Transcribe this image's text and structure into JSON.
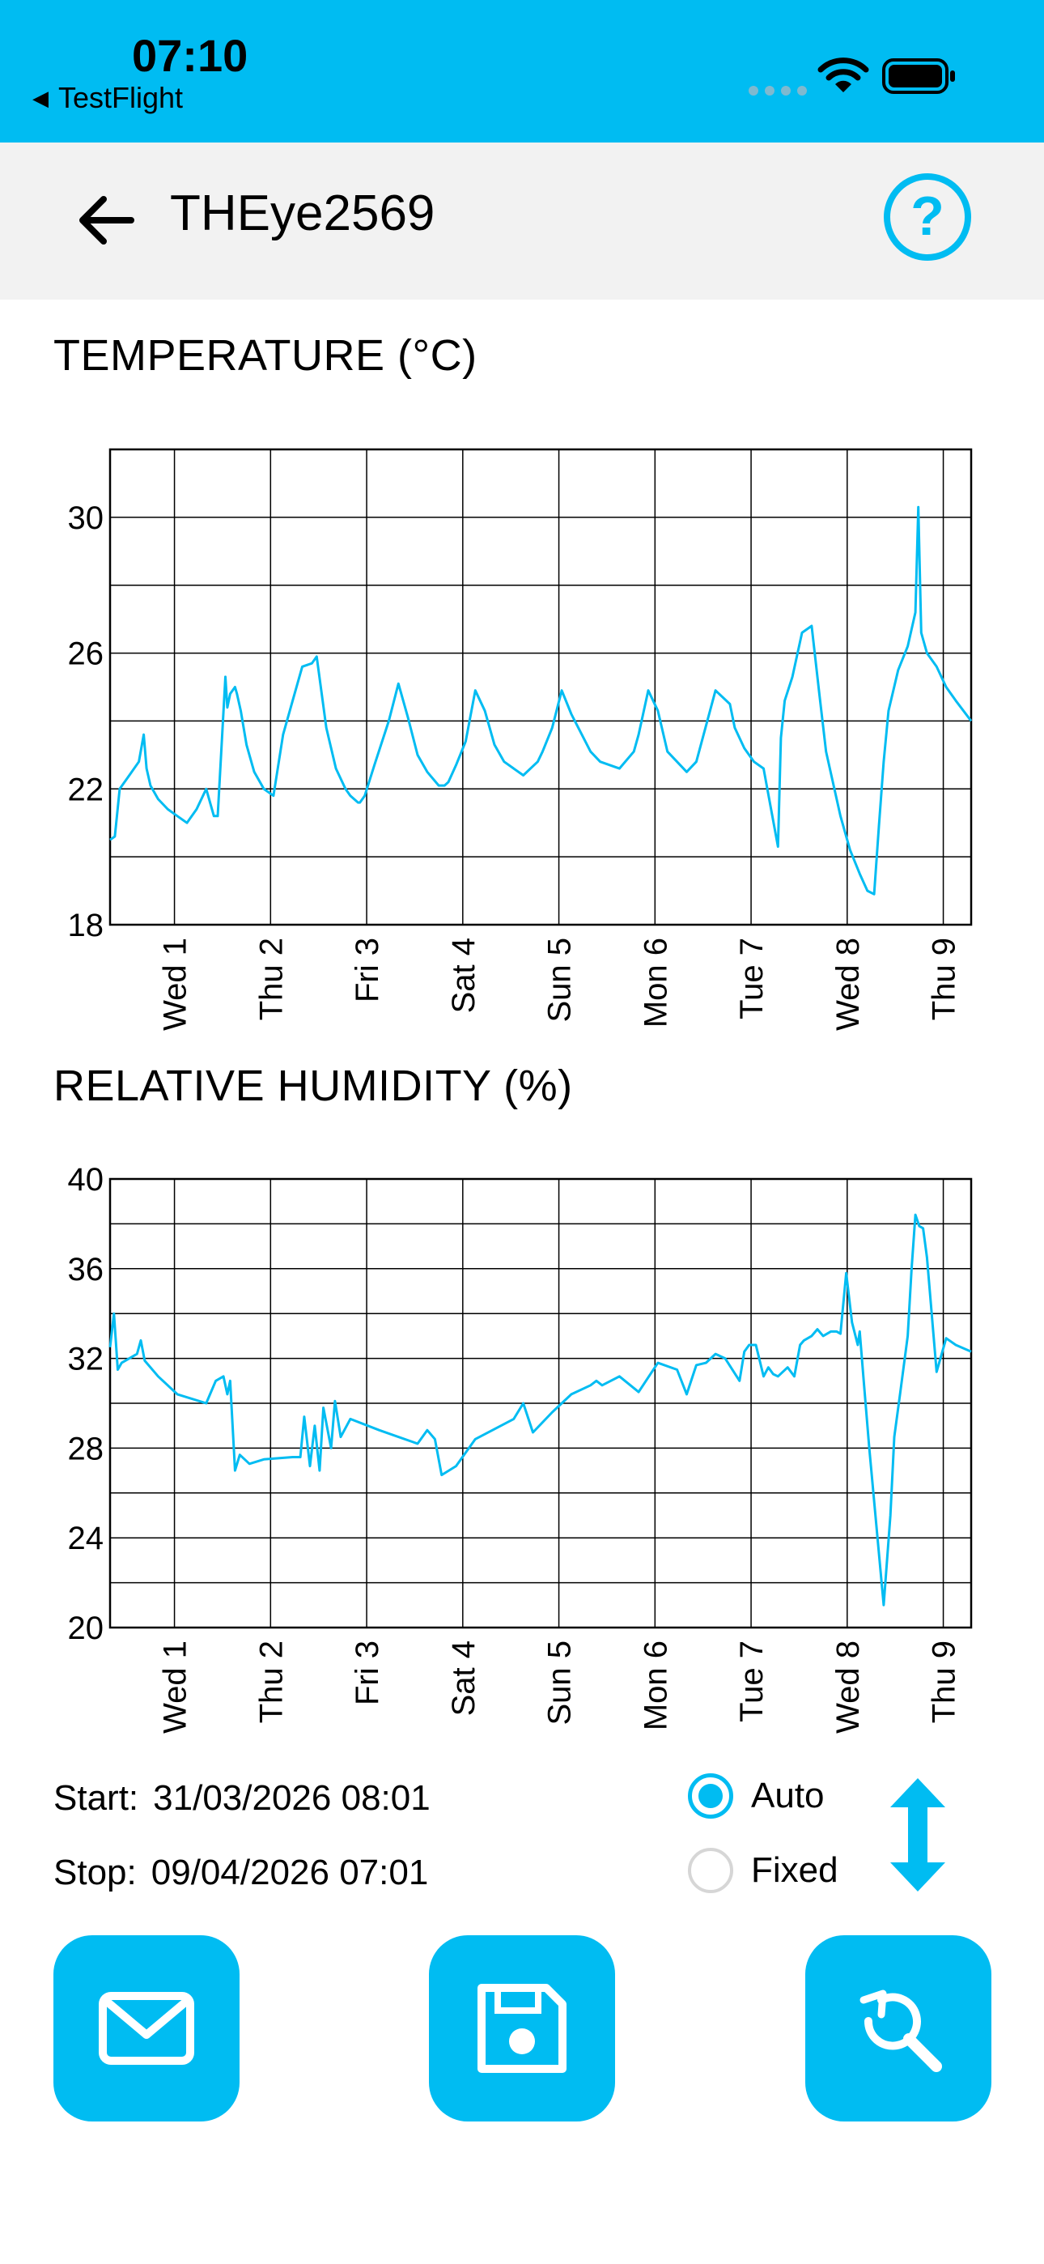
{
  "status_bar": {
    "time": "07:10",
    "back_app_label": "TestFlight",
    "icons": [
      "cellular-dots-icon",
      "wifi-icon",
      "battery-icon"
    ]
  },
  "nav": {
    "title": "THEye2569",
    "back_icon": "arrow-left-icon",
    "help_icon": "question-circle-icon"
  },
  "colors": {
    "accent": "#00bcf2",
    "nav_background": "#f2f2f2",
    "grid": "#000000"
  },
  "chart_data": [
    {
      "type": "line",
      "title": "TEMPERATURE (°C)",
      "ylim": [
        18,
        32
      ],
      "y_ticks": [
        30,
        26,
        22,
        18
      ],
      "x_ticks": [
        "Wed 1",
        "Thu 2",
        "Fri 3",
        "Sat 4",
        "Sun 5",
        "Mon 6",
        "Tue 7",
        "Wed 8",
        "Thu 9"
      ],
      "x_tick_positions_days": [
        0.67,
        1.67,
        2.67,
        3.67,
        4.67,
        5.67,
        6.67,
        7.67,
        8.67
      ],
      "xlim_days": [
        0,
        8.96
      ],
      "grid": true,
      "x": [
        0.0,
        0.05,
        0.1,
        0.2,
        0.3,
        0.35,
        0.38,
        0.42,
        0.5,
        0.6,
        0.7,
        0.8,
        0.9,
        1.0,
        1.08,
        1.12,
        1.2,
        1.22,
        1.25,
        1.3,
        1.32,
        1.36,
        1.42,
        1.5,
        1.6,
        1.7,
        1.8,
        1.9,
        2.0,
        2.1,
        2.15,
        2.25,
        2.35,
        2.45,
        2.5,
        2.58,
        2.6,
        2.65,
        2.75,
        2.9,
        3.0,
        3.1,
        3.2,
        3.3,
        3.42,
        3.48,
        3.52,
        3.6,
        3.7,
        3.8,
        3.9,
        4.0,
        4.1,
        4.3,
        4.45,
        4.5,
        4.6,
        4.7,
        4.8,
        5.0,
        5.1,
        5.3,
        5.45,
        5.5,
        5.6,
        5.7,
        5.8,
        6.0,
        6.1,
        6.3,
        6.45,
        6.5,
        6.6,
        6.7,
        6.8,
        6.95,
        6.98,
        7.02,
        7.1,
        7.2,
        7.3,
        7.38,
        7.45,
        7.6,
        7.7,
        7.8,
        7.88,
        7.95,
        8.0,
        8.05,
        8.1,
        8.2,
        8.3,
        8.38,
        8.41,
        8.44,
        8.5,
        8.6,
        8.7,
        8.8,
        8.96
      ],
      "y": [
        20.5,
        20.6,
        22.0,
        22.4,
        22.8,
        23.6,
        22.6,
        22.1,
        21.7,
        21.4,
        21.2,
        21.0,
        21.4,
        22.0,
        21.2,
        21.2,
        25.3,
        24.4,
        24.8,
        25.0,
        24.8,
        24.3,
        23.3,
        22.5,
        22.0,
        21.8,
        23.6,
        24.6,
        25.6,
        25.7,
        25.9,
        23.8,
        22.6,
        22.0,
        21.8,
        21.6,
        21.6,
        21.8,
        22.7,
        24.0,
        25.1,
        24.1,
        23.0,
        22.5,
        22.1,
        22.1,
        22.2,
        22.7,
        23.4,
        24.9,
        24.3,
        23.3,
        22.8,
        22.4,
        22.8,
        23.1,
        23.8,
        24.9,
        24.2,
        23.1,
        22.8,
        22.6,
        23.1,
        23.6,
        24.9,
        24.3,
        23.1,
        22.5,
        22.8,
        24.9,
        24.5,
        23.8,
        23.2,
        22.8,
        22.6,
        20.3,
        23.5,
        24.6,
        25.3,
        26.6,
        26.8,
        24.8,
        23.1,
        21.2,
        20.2,
        19.5,
        19.0,
        18.9,
        20.9,
        22.8,
        24.3,
        25.5,
        26.2,
        27.2,
        30.3,
        26.6,
        26.0,
        25.6,
        25.0,
        24.6,
        24.0
      ]
    },
    {
      "type": "line",
      "title": "RELATIVE HUMIDITY (%)",
      "ylim": [
        20,
        40
      ],
      "y_ticks": [
        40,
        36,
        32,
        28,
        24,
        20
      ],
      "x_ticks": [
        "Wed 1",
        "Thu 2",
        "Fri 3",
        "Sat 4",
        "Sun 5",
        "Mon 6",
        "Tue 7",
        "Wed 8",
        "Thu 9"
      ],
      "x_tick_positions_days": [
        0.67,
        1.67,
        2.67,
        3.67,
        4.67,
        5.67,
        6.67,
        7.67,
        8.67
      ],
      "xlim_days": [
        0,
        8.96
      ],
      "grid": true,
      "x": [
        0.0,
        0.04,
        0.08,
        0.12,
        0.2,
        0.28,
        0.32,
        0.36,
        0.5,
        0.7,
        1.0,
        1.1,
        1.18,
        1.22,
        1.25,
        1.3,
        1.35,
        1.45,
        1.6,
        1.9,
        1.98,
        2.02,
        2.08,
        2.13,
        2.18,
        2.22,
        2.3,
        2.34,
        2.4,
        2.5,
        2.8,
        3.2,
        3.3,
        3.38,
        3.45,
        3.6,
        3.8,
        4.2,
        4.3,
        4.4,
        4.6,
        4.8,
        5.0,
        5.06,
        5.12,
        5.3,
        5.5,
        5.7,
        5.9,
        6.0,
        6.1,
        6.2,
        6.3,
        6.4,
        6.55,
        6.6,
        6.65,
        6.72,
        6.8,
        6.85,
        6.9,
        6.95,
        7.05,
        7.12,
        7.18,
        7.22,
        7.3,
        7.36,
        7.42,
        7.5,
        7.56,
        7.6,
        7.66,
        7.72,
        7.78,
        7.8,
        7.84,
        7.9,
        8.05,
        8.12,
        8.16,
        8.22,
        8.3,
        8.34,
        8.38,
        8.42,
        8.46,
        8.5,
        8.6,
        8.7,
        8.8,
        8.96
      ],
      "y": [
        32.5,
        34.0,
        31.5,
        31.8,
        32.0,
        32.2,
        32.8,
        31.9,
        31.2,
        30.4,
        30.0,
        31.0,
        31.2,
        30.4,
        31.0,
        27.0,
        27.7,
        27.3,
        27.5,
        27.6,
        27.6,
        29.4,
        27.2,
        29.0,
        27.0,
        29.8,
        28.0,
        30.1,
        28.5,
        29.3,
        28.8,
        28.2,
        28.8,
        28.4,
        26.8,
        27.2,
        28.4,
        29.3,
        30.0,
        28.7,
        29.6,
        30.4,
        30.8,
        31.0,
        30.8,
        31.2,
        30.5,
        31.8,
        31.5,
        30.4,
        31.7,
        31.8,
        32.2,
        32.0,
        31.0,
        32.3,
        32.6,
        32.6,
        31.2,
        31.6,
        31.3,
        31.2,
        31.6,
        31.2,
        32.6,
        32.8,
        33.0,
        33.3,
        33.0,
        33.2,
        33.2,
        33.1,
        35.8,
        33.6,
        32.6,
        33.2,
        31.1,
        28.0,
        21.0,
        25.0,
        28.5,
        30.4,
        33.0,
        36.0,
        38.4,
        37.9,
        37.8,
        36.5,
        31.4,
        32.9,
        32.6,
        32.3
      ]
    }
  ],
  "range": {
    "start_label": "Start:",
    "start_value": "31/03/2026 08:01",
    "stop_label": "Stop:",
    "stop_value": "09/04/2026 07:01"
  },
  "scale_mode": {
    "options": [
      {
        "label": "Auto",
        "selected": true
      },
      {
        "label": "Fixed",
        "selected": false
      }
    ]
  },
  "actions": {
    "email_icon": "envelope-icon",
    "save_icon": "floppy-disk-icon",
    "zoom_reset_icon": "zoom-reset-icon",
    "scale_icon": "vertical-arrows-icon"
  }
}
